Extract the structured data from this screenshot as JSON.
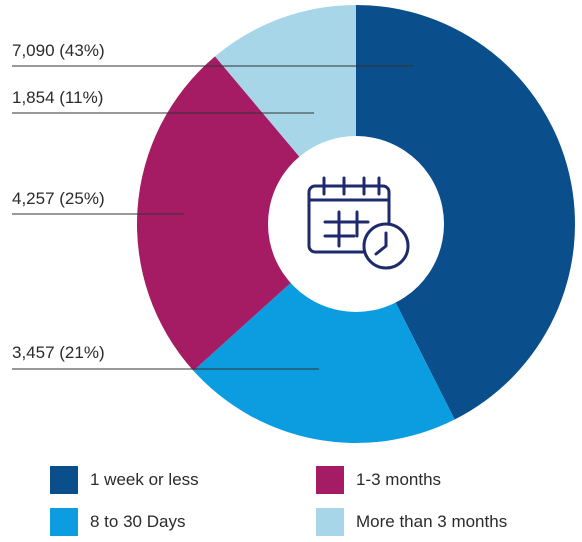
{
  "chart_data": {
    "type": "pie",
    "donut": true,
    "title": "",
    "slices": [
      {
        "name": "1 week or less",
        "value": 7090,
        "label": "7,090 (43%)",
        "color": "#0a4f8c"
      },
      {
        "name": "8 to 30 Days",
        "value": 3457,
        "label": "3,457 (21%)",
        "color": "#0b9de0"
      },
      {
        "name": "1-3 months",
        "value": 4257,
        "label": "4,257 (25%)",
        "color": "#a51c64"
      },
      {
        "name": "More than 3 months",
        "value": 1854,
        "label": "1,854 (11%)",
        "color": "#a6d6e8"
      }
    ],
    "legend": [
      {
        "label": "1 week or less",
        "color": "#0a4f8c"
      },
      {
        "label": "1-3 months",
        "color": "#a51c64"
      },
      {
        "label": "8 to 30 Days",
        "color": "#0b9de0"
      },
      {
        "label": "More than 3 months",
        "color": "#a6d6e8"
      }
    ],
    "center_icon": "calendar-clock-icon",
    "icon_color": "#1e2a6e",
    "leader_line_color": "#333333"
  }
}
